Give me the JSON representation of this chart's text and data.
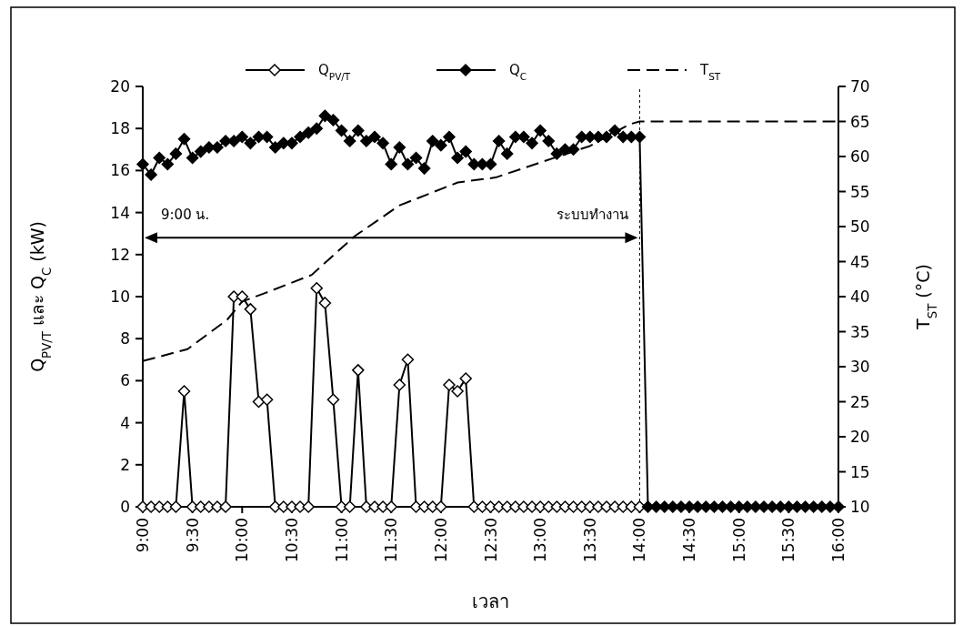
{
  "chart_data": {
    "type": "line",
    "xlabel": "เวลา",
    "ylabel": "Q$_{PV/T}$ และ Q$_{C}$ (kW)",
    "y2label": "T$_{ST}$ (°C)",
    "x": [
      9,
      9.0833,
      9.1667,
      9.25,
      9.3333,
      9.4167,
      9.5,
      9.5833,
      9.6667,
      9.75,
      9.8333,
      9.9167,
      10,
      10.0833,
      10.1667,
      10.25,
      10.3333,
      10.4167,
      10.5,
      10.5833,
      10.6667,
      10.75,
      10.8333,
      10.9167,
      11,
      11.0833,
      11.1667,
      11.25,
      11.3333,
      11.4167,
      11.5,
      11.5833,
      11.6667,
      11.75,
      11.8333,
      11.9167,
      12,
      12.0833,
      12.1667,
      12.25,
      12.3333,
      12.4167,
      12.5,
      12.5833,
      12.6667,
      12.75,
      12.8333,
      12.9167,
      13,
      13.0833,
      13.1667,
      13.25,
      13.3333,
      13.4167,
      13.5,
      13.5833,
      13.6667,
      13.75,
      13.8333,
      13.9167,
      14,
      14.0833,
      14.1667,
      14.25,
      14.3333,
      14.4167,
      14.5,
      14.5833,
      14.6667,
      14.75,
      14.8333,
      14.9167,
      15,
      15.0833,
      15.1667,
      15.25,
      15.3333,
      15.4167,
      15.5,
      15.5833,
      15.6667,
      15.75,
      15.8333,
      15.9167,
      16
    ],
    "series": [
      {
        "name": "Q$_{PV/T}$",
        "color": "#000000",
        "marker": "diamond",
        "values": [
          0,
          0,
          0,
          0,
          0,
          5.5,
          0,
          0,
          0,
          0,
          0,
          10,
          10,
          9.4,
          5,
          5.1,
          0,
          0,
          0,
          0,
          0,
          10.4,
          9.7,
          5.1,
          0,
          0,
          6.5,
          0,
          0,
          0,
          0,
          5.8,
          7,
          0,
          0,
          0,
          0,
          5.8,
          5.5,
          6.1,
          0,
          0,
          0,
          0,
          0,
          0,
          0,
          0,
          0,
          0,
          0,
          0,
          0,
          0,
          0,
          0,
          0,
          0,
          0,
          0,
          0,
          null,
          null,
          null,
          null,
          null,
          null,
          null,
          null,
          null,
          null,
          null,
          null,
          null,
          null,
          null,
          null,
          null,
          null,
          null,
          null,
          null,
          null,
          null,
          null
        ]
      },
      {
        "name": "Q$_{C}$",
        "color": "#000000",
        "marker": "diamond",
        "values": [
          16.3,
          15.8,
          16.6,
          16.3,
          16.8,
          17.5,
          16.6,
          16.9,
          17.1,
          17.1,
          17.4,
          17.4,
          17.6,
          17.3,
          17.6,
          17.6,
          17.1,
          17.3,
          17.3,
          17.6,
          17.8,
          18,
          18.6,
          18.4,
          17.9,
          17.4,
          17.9,
          17.4,
          17.6,
          17.3,
          16.3,
          17.1,
          16.3,
          16.6,
          16.1,
          17.4,
          17.2,
          17.6,
          16.6,
          16.9,
          16.3,
          16.3,
          16.3,
          17.4,
          16.8,
          17.6,
          17.6,
          17.3,
          17.9,
          17.4,
          16.8,
          17,
          17,
          17.6,
          17.6,
          17.6,
          17.6,
          17.9,
          17.6,
          17.6,
          17.6,
          0,
          0,
          0,
          0,
          0,
          0,
          0,
          0,
          0,
          0,
          0,
          0,
          0,
          0,
          0,
          0,
          0,
          0,
          0,
          0,
          0,
          0,
          0,
          0
        ]
      },
      {
        "name": "T$_{ST}$",
        "color": "#000000",
        "axis": "y2",
        "marker": "none",
        "line_style": "dashed",
        "x": [
          9,
          9.45,
          9.85,
          10,
          10.23,
          10.7,
          11.13,
          11.58,
          12.17,
          12.55,
          12.97,
          13.5,
          13.9,
          14,
          16
        ],
        "values": [
          30.8,
          32.5,
          36.7,
          39.3,
          40.5,
          43.1,
          48.6,
          53,
          56.3,
          57,
          59,
          61.5,
          64.6,
          65,
          65
        ]
      }
    ],
    "xlim": [
      9,
      16
    ],
    "xticks": [
      {
        "value": 9,
        "label": "9:00"
      },
      {
        "value": 9.5,
        "label": "9:30"
      },
      {
        "value": 10,
        "label": "10:00"
      },
      {
        "value": 10.5,
        "label": "10:30"
      },
      {
        "value": 11,
        "label": "11:00"
      },
      {
        "value": 11.5,
        "label": "11:30"
      },
      {
        "value": 12,
        "label": "12:00"
      },
      {
        "value": 12.5,
        "label": "12:30"
      },
      {
        "value": 13,
        "label": "13:00"
      },
      {
        "value": 13.5,
        "label": "13:30"
      },
      {
        "value": 14,
        "label": "14:00"
      },
      {
        "value": 14.5,
        "label": "14:30"
      },
      {
        "value": 15,
        "label": "15:00"
      },
      {
        "value": 15.5,
        "label": "15:30"
      },
      {
        "value": 16,
        "label": "16:00"
      }
    ],
    "ylim": [
      0,
      20
    ],
    "yticks": [
      0,
      2,
      4,
      6,
      8,
      10,
      12,
      14,
      16,
      18,
      20
    ],
    "y2lim": [
      10,
      70
    ],
    "y2ticks": [
      10,
      15,
      20,
      25,
      30,
      35,
      40,
      45,
      50,
      55,
      60,
      65,
      70
    ],
    "ref_lines": [
      {
        "axis": "x",
        "value": 14,
        "line_style": "dotted",
        "color": "#000000"
      }
    ],
    "annotations": [
      "9:00 น.",
      "ระบบทำงาน"
    ],
    "legend": "top",
    "grid": false
  }
}
